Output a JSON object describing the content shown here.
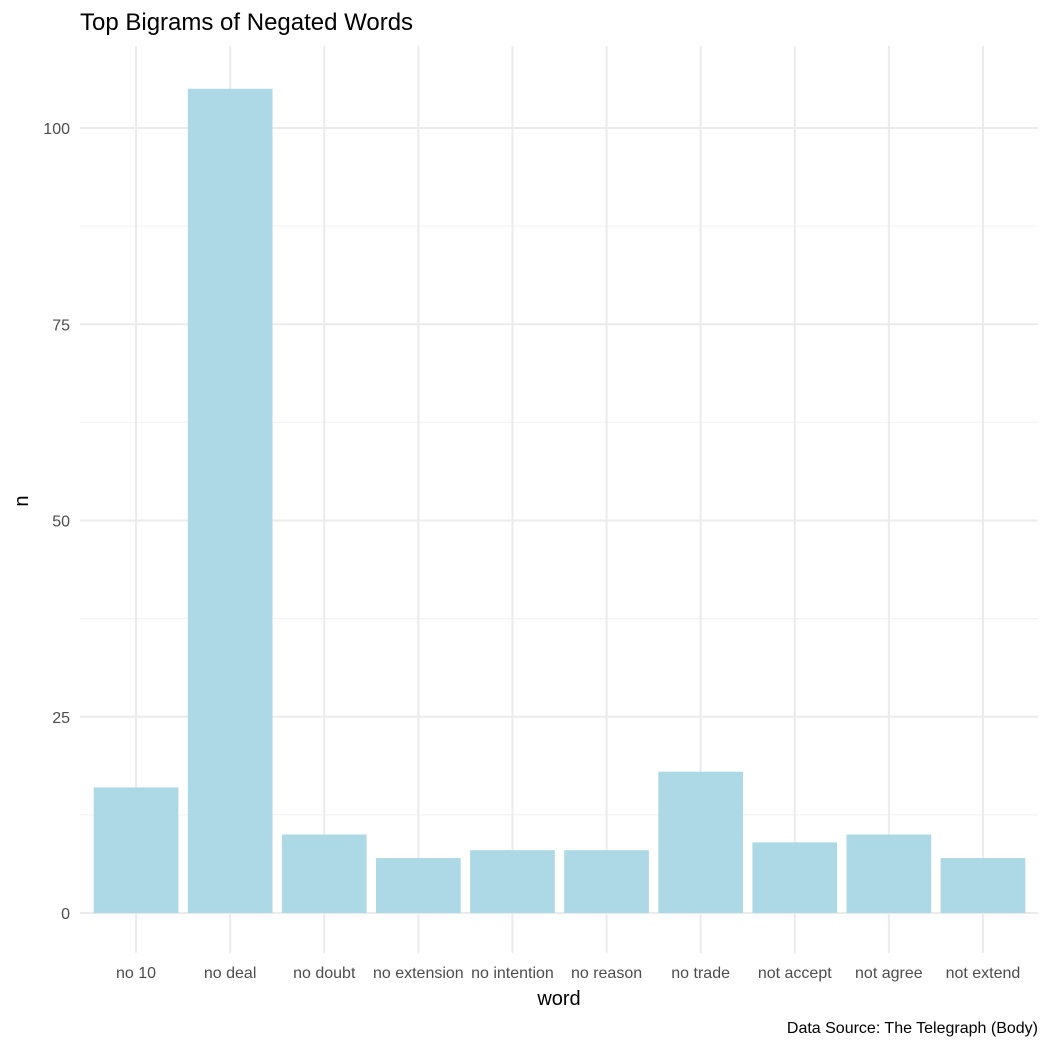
{
  "chart_data": {
    "type": "bar",
    "title": "Top Bigrams of Negated Words",
    "xlabel": "word",
    "ylabel": "n",
    "caption": "Data Source: The Telegraph (Body)",
    "categories": [
      "no 10",
      "no deal",
      "no doubt",
      "no extension",
      "no intention",
      "no reason",
      "no trade",
      "not accept",
      "not agree",
      "not extend"
    ],
    "values": [
      16,
      105,
      10,
      7,
      8,
      8,
      18,
      9,
      10,
      7
    ],
    "yticks": [
      0,
      25,
      50,
      75,
      100
    ],
    "ylim": [
      0,
      110
    ],
    "grid": true,
    "bar_color": "#add8e6"
  }
}
